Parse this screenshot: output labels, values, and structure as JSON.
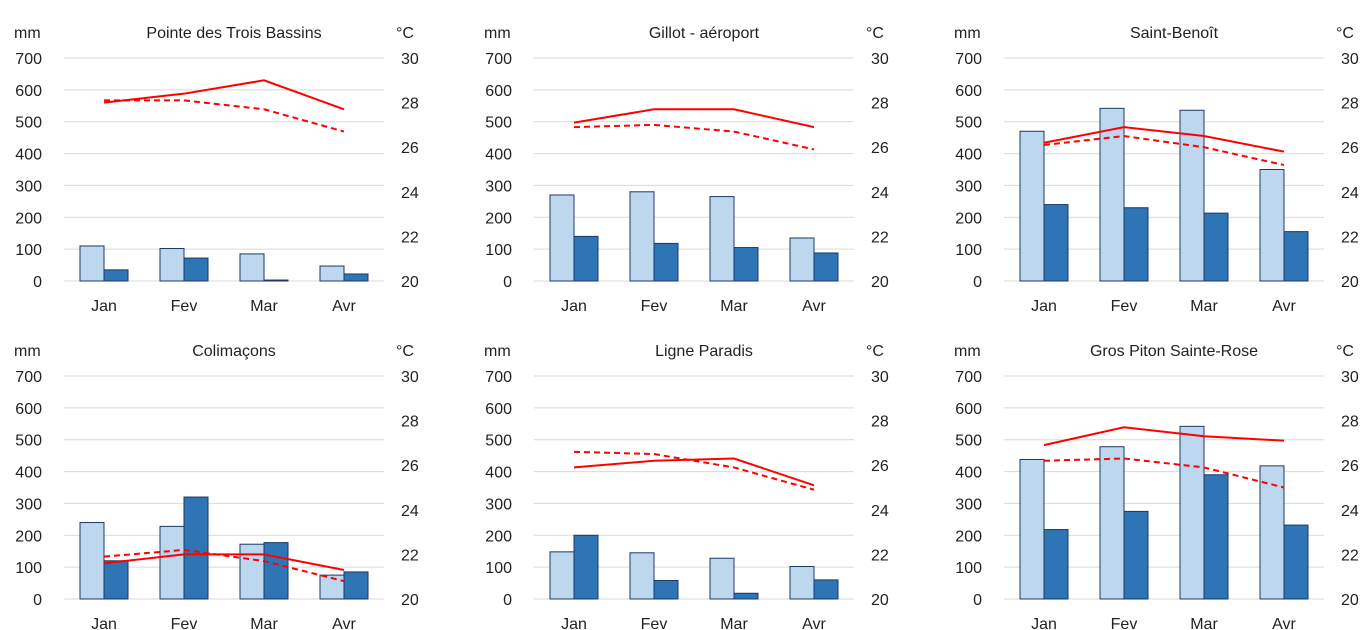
{
  "colors": {
    "bar_light": "#bdd7ee",
    "bar_dark": "#2e75b6",
    "bar_stroke": "#1f3864",
    "line": "#ff0000",
    "grid": "#d9d9d9"
  },
  "chart_data": [
    {
      "type": "bar",
      "title": "Pointe des Trois Bassins",
      "left_unit": "mm",
      "right_unit": "°C",
      "categories": [
        "Jan",
        "Fev",
        "Mar",
        "Avr"
      ],
      "ylim": [
        0,
        700
      ],
      "y2lim": [
        20,
        30
      ],
      "yticks": [
        "0",
        "100",
        "200",
        "300",
        "400",
        "500",
        "600",
        "700"
      ],
      "y2ticks": [
        "20",
        "22",
        "24",
        "26",
        "28",
        "30"
      ],
      "series": [
        {
          "values": [
            110,
            102,
            85,
            47
          ]
        },
        {
          "values": [
            35,
            72,
            3,
            22
          ]
        },
        {
          "type": "line",
          "style": "solid",
          "axis": "right",
          "values": [
            28.0,
            28.4,
            29.0,
            27.7
          ]
        },
        {
          "type": "line",
          "style": "dashed",
          "axis": "right",
          "values": [
            28.1,
            28.1,
            27.7,
            26.7
          ]
        }
      ]
    },
    {
      "type": "bar",
      "title": "Gillot - aéroport",
      "left_unit": "mm",
      "right_unit": "°C",
      "categories": [
        "Jan",
        "Fev",
        "Mar",
        "Avr"
      ],
      "ylim": [
        0,
        700
      ],
      "y2lim": [
        20,
        30
      ],
      "yticks": [
        "0",
        "100",
        "200",
        "300",
        "400",
        "500",
        "600",
        "700"
      ],
      "y2ticks": [
        "20",
        "22",
        "24",
        "26",
        "28",
        "30"
      ],
      "series": [
        {
          "values": [
            270,
            280,
            265,
            135
          ]
        },
        {
          "values": [
            140,
            118,
            105,
            88
          ]
        },
        {
          "type": "line",
          "style": "solid",
          "axis": "right",
          "values": [
            27.1,
            27.7,
            27.7,
            26.9
          ]
        },
        {
          "type": "line",
          "style": "dashed",
          "axis": "right",
          "values": [
            26.9,
            27.0,
            26.7,
            25.9
          ]
        }
      ]
    },
    {
      "type": "bar",
      "title": "Saint-Benoît",
      "left_unit": "mm",
      "right_unit": "°C",
      "categories": [
        "Jan",
        "Fev",
        "Mar",
        "Avr"
      ],
      "ylim": [
        0,
        700
      ],
      "y2lim": [
        20,
        30
      ],
      "yticks": [
        "0",
        "100",
        "200",
        "300",
        "400",
        "500",
        "600",
        "700"
      ],
      "y2ticks": [
        "20",
        "22",
        "24",
        "26",
        "28",
        "30"
      ],
      "series": [
        {
          "values": [
            470,
            542,
            536,
            350
          ]
        },
        {
          "values": [
            240,
            230,
            213,
            155
          ]
        },
        {
          "type": "line",
          "style": "solid",
          "axis": "right",
          "values": [
            26.2,
            26.9,
            26.5,
            25.8
          ]
        },
        {
          "type": "line",
          "style": "dashed",
          "axis": "right",
          "values": [
            26.1,
            26.5,
            26.0,
            25.2
          ]
        }
      ]
    },
    {
      "type": "bar",
      "title": "Colimaçons",
      "left_unit": "mm",
      "right_unit": "°C",
      "categories": [
        "Jan",
        "Fev",
        "Mar",
        "Avr"
      ],
      "ylim": [
        0,
        700
      ],
      "y2lim": [
        20,
        30
      ],
      "yticks": [
        "0",
        "100",
        "200",
        "300",
        "400",
        "500",
        "600",
        "700"
      ],
      "y2ticks": [
        "20",
        "22",
        "24",
        "26",
        "28",
        "30"
      ],
      "series": [
        {
          "values": [
            240,
            228,
            172,
            75
          ]
        },
        {
          "values": [
            120,
            320,
            177,
            85
          ]
        },
        {
          "type": "line",
          "style": "solid",
          "axis": "right",
          "values": [
            21.6,
            22.0,
            22.0,
            21.3
          ]
        },
        {
          "type": "line",
          "style": "dashed",
          "axis": "right",
          "values": [
            21.9,
            22.2,
            21.7,
            20.8
          ]
        }
      ]
    },
    {
      "type": "bar",
      "title": "Ligne Paradis",
      "left_unit": "mm",
      "right_unit": "°C",
      "categories": [
        "Jan",
        "Fev",
        "Mar",
        "Avr"
      ],
      "ylim": [
        0,
        700
      ],
      "y2lim": [
        20,
        30
      ],
      "yticks": [
        "0",
        "100",
        "200",
        "300",
        "400",
        "500",
        "600",
        "700"
      ],
      "y2ticks": [
        "20",
        "22",
        "24",
        "26",
        "28",
        "30"
      ],
      "series": [
        {
          "values": [
            148,
            145,
            128,
            102
          ]
        },
        {
          "values": [
            200,
            58,
            18,
            60
          ]
        },
        {
          "type": "line",
          "style": "solid",
          "axis": "right",
          "values": [
            25.9,
            26.2,
            26.3,
            25.1
          ]
        },
        {
          "type": "line",
          "style": "dashed",
          "axis": "right",
          "values": [
            26.6,
            26.5,
            25.9,
            24.9
          ]
        }
      ]
    },
    {
      "type": "bar",
      "title": "Gros Piton Sainte-Rose",
      "left_unit": "mm",
      "right_unit": "°C",
      "categories": [
        "Jan",
        "Fev",
        "Mar",
        "Avr"
      ],
      "ylim": [
        0,
        700
      ],
      "y2lim": [
        20,
        30
      ],
      "yticks": [
        "0",
        "100",
        "200",
        "300",
        "400",
        "500",
        "600",
        "700"
      ],
      "y2ticks": [
        "20",
        "22",
        "24",
        "26",
        "28",
        "30"
      ],
      "series": [
        {
          "values": [
            438,
            478,
            542,
            418
          ]
        },
        {
          "values": [
            218,
            275,
            390,
            232
          ]
        },
        {
          "type": "line",
          "style": "solid",
          "axis": "right",
          "values": [
            26.9,
            27.7,
            27.3,
            27.1
          ]
        },
        {
          "type": "line",
          "style": "dashed",
          "axis": "right",
          "values": [
            26.2,
            26.3,
            25.9,
            25.0
          ]
        }
      ]
    }
  ]
}
